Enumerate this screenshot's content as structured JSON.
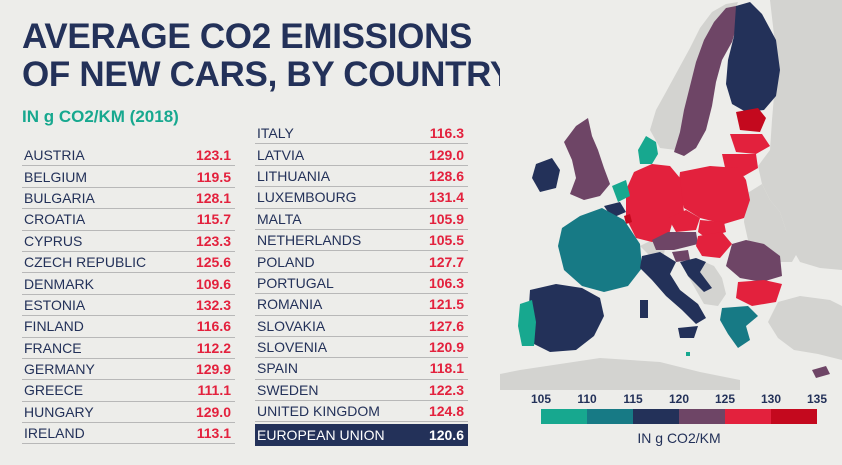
{
  "title_line1": "AVERAGE CO2 EMISSIONS",
  "title_line2": "OF NEW CARS, BY COUNTRY",
  "subtitle": "IN g CO2/KM (2018)",
  "left_rows": [
    {
      "country": "AUSTRIA",
      "value": "123.1"
    },
    {
      "country": "BELGIUM",
      "value": "119.5"
    },
    {
      "country": "BULGARIA",
      "value": "128.1"
    },
    {
      "country": "CROATIA",
      "value": "115.7"
    },
    {
      "country": "CYPRUS",
      "value": "123.3"
    },
    {
      "country": "CZECH REPUBLIC",
      "value": "125.6"
    },
    {
      "country": "DENMARK",
      "value": "109.6"
    },
    {
      "country": "ESTONIA",
      "value": "132.3"
    },
    {
      "country": "FINLAND",
      "value": "116.6"
    },
    {
      "country": "FRANCE",
      "value": "112.2"
    },
    {
      "country": "GERMANY",
      "value": "129.9"
    },
    {
      "country": "GREECE",
      "value": "111.1"
    },
    {
      "country": "HUNGARY",
      "value": "129.0"
    },
    {
      "country": "IRELAND",
      "value": "113.1"
    }
  ],
  "right_rows": [
    {
      "country": "ITALY",
      "value": "116.3"
    },
    {
      "country": "LATVIA",
      "value": "129.0"
    },
    {
      "country": "LITHUANIA",
      "value": "128.6"
    },
    {
      "country": "LUXEMBOURG",
      "value": "131.4"
    },
    {
      "country": "MALTA",
      "value": "105.9"
    },
    {
      "country": "NETHERLANDS",
      "value": "105.5"
    },
    {
      "country": "POLAND",
      "value": "127.7"
    },
    {
      "country": "PORTUGAL",
      "value": "106.3"
    },
    {
      "country": "ROMANIA",
      "value": "121.5"
    },
    {
      "country": "SLOVAKIA",
      "value": "127.6"
    },
    {
      "country": "SLOVENIA",
      "value": "120.9"
    },
    {
      "country": "SPAIN",
      "value": "118.1"
    },
    {
      "country": "SWEDEN",
      "value": "122.3"
    },
    {
      "country": "UNITED KINGDOM",
      "value": "124.8"
    }
  ],
  "eu_row": {
    "country": "EUROPEAN UNION",
    "value": "120.6"
  },
  "legend": {
    "ticks": [
      "105",
      "110",
      "115",
      "120",
      "125",
      "130",
      "135"
    ],
    "colors": [
      "#17a88f",
      "#177a85",
      "#233159",
      "#6e4566",
      "#e3213d",
      "#c4091e"
    ],
    "label": "IN g CO2/KM"
  },
  "palette": {
    "background": "#ededea",
    "navy": "#233159",
    "teal": "#17a88f",
    "red": "#e3213d",
    "nonEU": "#d3d3d0"
  }
}
